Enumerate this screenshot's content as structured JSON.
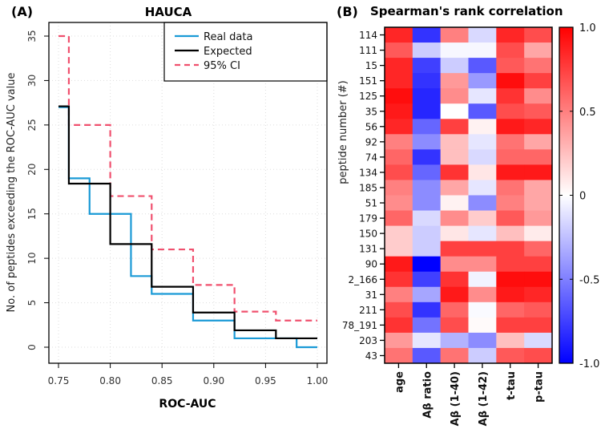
{
  "chart_data": [
    {
      "type": "line",
      "panel_label": "(A)",
      "title": "HAUCA",
      "xlabel": "ROC-AUC",
      "ylabel": "No. of peptides exceeding the ROC-AUC value",
      "xlim": [
        0.74,
        1.01
      ],
      "ylim": [
        -2,
        36
      ],
      "xticks": [
        "0.75",
        "0.80",
        "0.85",
        "0.90",
        "0.95",
        "1.00"
      ],
      "yticks": [
        "0",
        "5",
        "10",
        "15",
        "20",
        "25",
        "30",
        "35"
      ],
      "grid": true,
      "legend_position": "top-right",
      "step_style": "step-after",
      "series": [
        {
          "name": "Real data",
          "color": "#1a9ad6",
          "dash": false,
          "x": [
            0.75,
            0.76,
            0.78,
            0.82,
            0.84,
            0.88,
            0.92,
            0.98,
            1.0
          ],
          "y": [
            27,
            19,
            15,
            8,
            6,
            3,
            1,
            0,
            0
          ]
        },
        {
          "name": "Expected",
          "color": "#000000",
          "dash": false,
          "x": [
            0.75,
            0.76,
            0.8,
            0.84,
            0.88,
            0.92,
            0.96,
            1.0
          ],
          "y": [
            27.1,
            18.4,
            11.6,
            6.8,
            3.9,
            1.9,
            1.0,
            1.0
          ]
        },
        {
          "name": "95% CI",
          "color": "#f0506e",
          "dash": true,
          "x": [
            0.75,
            0.76,
            0.8,
            0.84,
            0.88,
            0.92,
            0.96,
            1.0
          ],
          "y": [
            35,
            25,
            17,
            11,
            7,
            4,
            3,
            3
          ]
        }
      ]
    },
    {
      "type": "heatmap",
      "panel_label": "(B)",
      "title": "Spearman's rank correlation",
      "ylabel": "peptide number (#)",
      "rows": [
        "114",
        "111",
        "15",
        "151",
        "125",
        "35",
        "56",
        "92",
        "74",
        "134",
        "185",
        "51",
        "179",
        "150",
        "131",
        "90",
        "2_166",
        "31",
        "211",
        "78_191",
        "203",
        "43"
      ],
      "columns": [
        "age",
        "Aβ ratio",
        "Aβ (1-40)",
        "Aβ (1-42)",
        "t-tau",
        "p-tau"
      ],
      "values": [
        [
          0.85,
          -0.8,
          0.5,
          -0.15,
          0.85,
          0.7
        ],
        [
          0.65,
          -0.2,
          -0.03,
          -0.03,
          0.7,
          0.35
        ],
        [
          0.85,
          -0.75,
          -0.2,
          -0.65,
          0.65,
          0.55
        ],
        [
          0.85,
          -0.8,
          0.4,
          -0.4,
          0.95,
          0.75
        ],
        [
          0.95,
          -0.85,
          0.45,
          -0.1,
          0.8,
          0.45
        ],
        [
          0.9,
          -0.85,
          0.0,
          -0.65,
          0.7,
          0.65
        ],
        [
          0.85,
          -0.6,
          0.75,
          0.05,
          0.9,
          0.85
        ],
        [
          0.5,
          -0.45,
          0.25,
          -0.1,
          0.55,
          0.35
        ],
        [
          0.6,
          -0.8,
          0.25,
          -0.15,
          0.6,
          0.6
        ],
        [
          0.7,
          -0.6,
          0.8,
          0.1,
          0.9,
          0.9
        ],
        [
          0.5,
          -0.45,
          0.35,
          -0.1,
          0.55,
          0.35
        ],
        [
          0.45,
          -0.45,
          0.05,
          -0.45,
          0.5,
          0.35
        ],
        [
          0.6,
          -0.15,
          0.45,
          0.2,
          0.65,
          0.4
        ],
        [
          0.2,
          -0.2,
          0.1,
          -0.1,
          0.25,
          0.08
        ],
        [
          0.2,
          -0.2,
          0.75,
          0.75,
          0.75,
          0.6
        ],
        [
          0.9,
          -1.0,
          0.45,
          0.45,
          0.75,
          0.75
        ],
        [
          0.8,
          -0.75,
          0.8,
          -0.05,
          0.95,
          0.95
        ],
        [
          0.5,
          -0.35,
          0.9,
          0.45,
          0.9,
          0.85
        ],
        [
          0.7,
          -0.8,
          0.6,
          -0.02,
          0.6,
          0.65
        ],
        [
          0.8,
          -0.55,
          0.7,
          0.02,
          0.75,
          0.75
        ],
        [
          0.4,
          -0.1,
          -0.3,
          -0.45,
          0.25,
          -0.15
        ],
        [
          0.55,
          -0.65,
          0.55,
          -0.2,
          0.65,
          0.7
        ]
      ],
      "colorbar": {
        "range": [
          -1,
          1
        ],
        "ticks": [
          "1.0",
          "0.5",
          "0",
          "-0.5",
          "-1.0"
        ],
        "low_color": "#0000ff",
        "mid_color": "#ffffff",
        "high_color": "#ff0000"
      }
    }
  ]
}
